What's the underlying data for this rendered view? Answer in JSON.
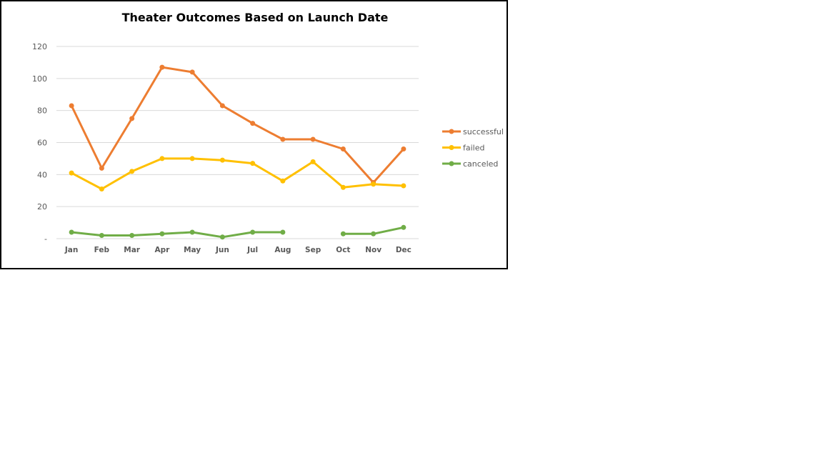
{
  "chart_data": {
    "type": "line",
    "title": "Theater Outcomes Based on Launch Date",
    "xlabel": "",
    "ylabel": "",
    "ylim": [
      0,
      120
    ],
    "yticks": [
      {
        "value": 0,
        "label": "-"
      },
      {
        "value": 20,
        "label": "20"
      },
      {
        "value": 40,
        "label": "40"
      },
      {
        "value": 60,
        "label": "60"
      },
      {
        "value": 80,
        "label": "80"
      },
      {
        "value": 100,
        "label": "100"
      },
      {
        "value": 120,
        "label": "120"
      }
    ],
    "categories": [
      "Jan",
      "Feb",
      "Mar",
      "Apr",
      "May",
      "Jun",
      "Jul",
      "Aug",
      "Sep",
      "Oct",
      "Nov",
      "Dec"
    ],
    "grid": true,
    "legend_position": "right",
    "series": [
      {
        "name": "successful",
        "color": "#ED7D31",
        "values": [
          83,
          44,
          75,
          107,
          104,
          83,
          72,
          62,
          62,
          56,
          35,
          56
        ]
      },
      {
        "name": "failed",
        "color": "#FFC000",
        "values": [
          41,
          31,
          42,
          50,
          50,
          49,
          47,
          36,
          48,
          32,
          34,
          33
        ]
      },
      {
        "name": "canceled",
        "color": "#70AD47",
        "values": [
          4,
          2,
          2,
          3,
          4,
          1,
          4,
          4,
          null,
          3,
          3,
          7
        ]
      }
    ]
  }
}
